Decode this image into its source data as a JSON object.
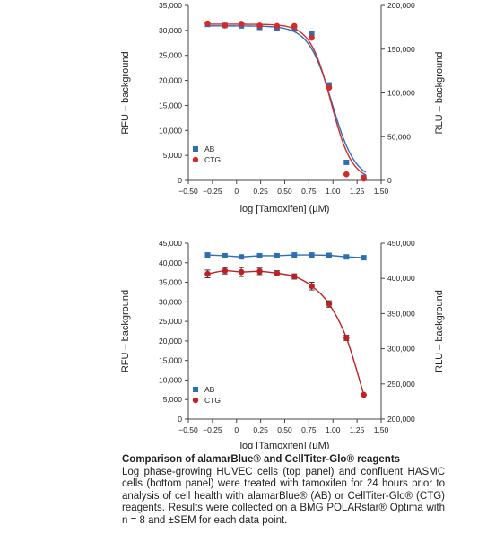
{
  "chart_data": [
    {
      "type": "scatter",
      "xlabel": "log [Tamoxifen] (µM)",
      "ylabel": "RFU – background",
      "y2label": "RLU – background",
      "xlim": [
        -0.5,
        1.5
      ],
      "ylim": [
        0,
        35000
      ],
      "y2lim": [
        0,
        200000
      ],
      "xticks": [
        "−0.50",
        "−0.25",
        "0",
        "0.25",
        "0.50",
        "0.75",
        "1.00",
        "1.25",
        "1.50"
      ],
      "yticks": [
        "0",
        "5,000",
        "10,000",
        "15,000",
        "20,000",
        "25,000",
        "30,000",
        "35,000"
      ],
      "y2ticks": [
        "0",
        "50,000",
        "100,000",
        "150,000",
        "200,000"
      ],
      "legend_position": "lower-left",
      "series": [
        {
          "name": "AB",
          "axis": "left",
          "marker": "square",
          "color": "#2e6fb3",
          "x": [
            -0.3,
            -0.12,
            0.05,
            0.24,
            0.42,
            0.6,
            0.78,
            0.96,
            1.14,
            1.32
          ],
          "y": [
            31200,
            31000,
            30900,
            30600,
            30400,
            30300,
            29300,
            19100,
            3600,
            600
          ]
        },
        {
          "name": "CTG",
          "axis": "right",
          "marker": "circle",
          "color": "#d42a2a",
          "x": [
            -0.3,
            -0.12,
            0.05,
            0.24,
            0.42,
            0.6,
            0.78,
            0.96,
            1.14,
            1.32
          ],
          "y": [
            179500,
            177000,
            179000,
            177000,
            176500,
            176500,
            163000,
            106000,
            7000,
            2000
          ]
        }
      ]
    },
    {
      "type": "scatter",
      "xlabel": "log [Tamoxifen] (µM)",
      "ylabel": "RFU – background",
      "y2label": "RLU – background",
      "xlim": [
        -0.5,
        1.5
      ],
      "ylim": [
        0,
        45000
      ],
      "y2lim": [
        200000,
        475000
      ],
      "xticks": [
        "−0.50",
        "−0.25",
        "0",
        "0.25",
        "0.50",
        "0.75",
        "1.00",
        "1.25",
        "1.50"
      ],
      "yticks": [
        "0",
        "5,000",
        "10,000",
        "15,000",
        "20,000",
        "25,000",
        "30,000",
        "35,000",
        "40,000",
        "45,000"
      ],
      "y2ticks": [
        "200,000",
        "250,000",
        "300,000",
        "350,000",
        "400,000",
        "450,000"
      ],
      "legend_position": "lower-left",
      "series": [
        {
          "name": "AB",
          "axis": "left",
          "marker": "square",
          "color": "#2e6fb3",
          "x": [
            -0.3,
            -0.12,
            0.05,
            0.24,
            0.42,
            0.6,
            0.78,
            0.96,
            1.14,
            1.32
          ],
          "y": [
            42000,
            41800,
            41500,
            41800,
            41800,
            42000,
            42000,
            41900,
            41500,
            41300
          ]
        },
        {
          "name": "CTG",
          "axis": "right",
          "marker": "circle",
          "color": "#c01f24",
          "x": [
            -0.3,
            -0.12,
            0.05,
            0.24,
            0.42,
            0.6,
            0.78,
            0.96,
            1.14,
            1.32
          ],
          "y": [
            427000,
            432000,
            430000,
            431000,
            428000,
            423000,
            408000,
            380000,
            327000,
            238000
          ],
          "err": [
            6000,
            5000,
            7000,
            5000,
            4000,
            4000,
            6000,
            5000,
            4000,
            0
          ]
        }
      ]
    }
  ],
  "caption": {
    "title": "Comparison of alamarBlue® and CellTiter-Glo® reagents",
    "body": "Log phase-growing HUVEC cells (top panel) and confluent HASMC cells (bottom panel) were treated with tamoxifen for 24 hours prior to analysis of cell health with alamarBlue® (AB) or CellTiter-Glo® (CTG) reagents. Results were collected on a BMG POLARstar® Optima with n = 8 and ±SEM for each data point."
  }
}
